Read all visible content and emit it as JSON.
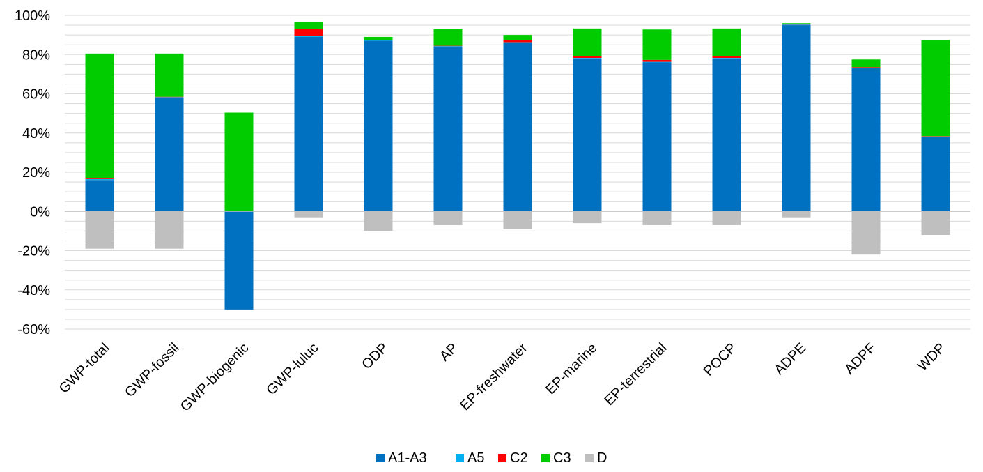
{
  "chart_data": {
    "type": "stacked-bar",
    "categories": [
      "GWP-total",
      "GWP-fossil",
      "GWP-biogenic",
      "GWP-luluc",
      "ODP",
      "AP",
      "EP-freshwater",
      "EP-marine",
      "EP-terrestrial",
      "POCP",
      "ADPE",
      "ADPF",
      "WDP"
    ],
    "series": [
      {
        "name": "A1-A3",
        "color": "#0070C0",
        "values": [
          16,
          58,
          -50,
          89,
          87,
          84,
          86,
          78,
          76,
          78,
          95,
          73,
          38
        ]
      },
      {
        "name": "A5",
        "color": "#00B0F0",
        "values": [
          0.5,
          0.3,
          0.2,
          0.5,
          0.3,
          0.3,
          0.3,
          0.3,
          0.3,
          0.3,
          0.3,
          0.3,
          0.2
        ]
      },
      {
        "name": "C2",
        "color": "#FF0000",
        "values": [
          0.5,
          0.2,
          0.2,
          3.5,
          0.2,
          0.2,
          1.0,
          1.0,
          1.0,
          1.0,
          0.3,
          0.3,
          0.2
        ]
      },
      {
        "name": "C3",
        "color": "#00CC00",
        "values": [
          63.5,
          22,
          50,
          3.5,
          1.5,
          8.5,
          2.7,
          14,
          15.5,
          14,
          0.4,
          3.9,
          49
        ]
      },
      {
        "name": "D",
        "color": "#BFBFBF",
        "values": [
          -19,
          -19,
          0,
          -3,
          -10,
          -7,
          -9,
          -6,
          -7,
          -7,
          -3,
          -22,
          -12
        ]
      }
    ],
    "y_ticks": [
      "100%",
      "80%",
      "60%",
      "40%",
      "20%",
      "0%",
      "-20%",
      "-40%",
      "-60%"
    ],
    "ylim": [
      -60,
      100
    ],
    "ylabel": "",
    "xlabel": "",
    "title": "",
    "legend_position": "bottom",
    "grid": true
  }
}
